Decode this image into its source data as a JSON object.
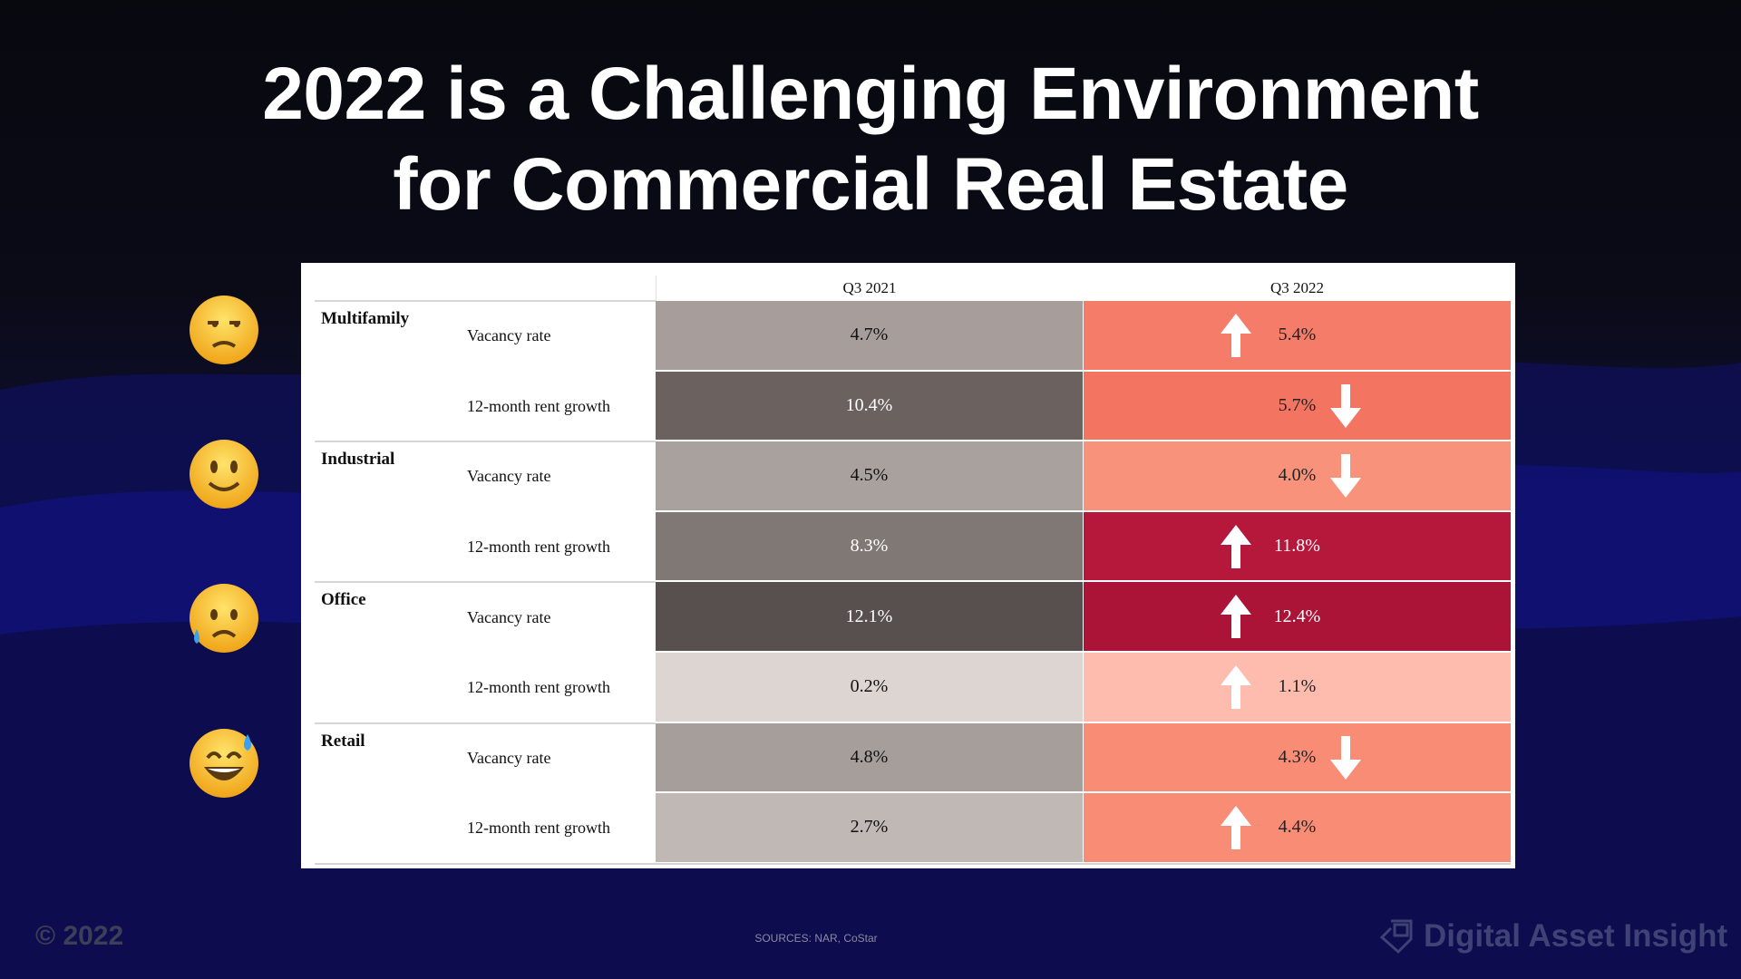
{
  "title": {
    "line1": "2022 is a Challenging Environment",
    "line2": "for Commercial Real Estate"
  },
  "table": {
    "columns": [
      "Q3 2021",
      "Q3 2022"
    ],
    "rows": [
      {
        "sector": "Multifamily",
        "metric": "Vacancy rate",
        "q3_2021": "4.7%",
        "q3_2022": "5.4%",
        "trend": "up",
        "c2021": "#a79e9b",
        "c2022": "#f47c69"
      },
      {
        "sector": "",
        "metric": "12-month rent growth",
        "q3_2021": "10.4%",
        "q3_2022": "5.7%",
        "trend": "down",
        "c2021": "#6b6260",
        "c2022": "#f37461"
      },
      {
        "sector": "Industrial",
        "metric": "Vacancy rate",
        "q3_2021": "4.5%",
        "q3_2022": "4.0%",
        "trend": "down",
        "c2021": "#a9a19e",
        "c2022": "#f8927a"
      },
      {
        "sector": "",
        "metric": "12-month rent growth",
        "q3_2021": "8.3%",
        "q3_2022": "11.8%",
        "trend": "up",
        "c2021": "#807875",
        "c2022": "#b5183a"
      },
      {
        "sector": "Office",
        "metric": "Vacancy rate",
        "q3_2021": "12.1%",
        "q3_2022": "12.4%",
        "trend": "up",
        "c2021": "#58504e",
        "c2022": "#ac1437"
      },
      {
        "sector": "",
        "metric": "12-month rent growth",
        "q3_2021": "0.2%",
        "q3_2022": "1.1%",
        "trend": "up",
        "c2021": "#dcd5d2",
        "c2022": "#fdbcae"
      },
      {
        "sector": "Retail",
        "metric": "Vacancy rate",
        "q3_2021": "4.8%",
        "q3_2022": "4.3%",
        "trend": "down",
        "c2021": "#a69e9b",
        "c2022": "#f98c75"
      },
      {
        "sector": "",
        "metric": "12-month rent growth",
        "q3_2021": "2.7%",
        "q3_2022": "4.4%",
        "trend": "up",
        "c2021": "#c0b8b5",
        "c2022": "#f98c75"
      }
    ]
  },
  "emojis": [
    "unamused-face-icon",
    "slightly-smiling-face-icon",
    "sad-but-relieved-face-icon",
    "grinning-face-with-sweat-icon"
  ],
  "footer": {
    "copyright": "© 2022",
    "sources": "SOURCES:    NAR, CoStar",
    "brand": "Digital Asset Insight"
  }
}
